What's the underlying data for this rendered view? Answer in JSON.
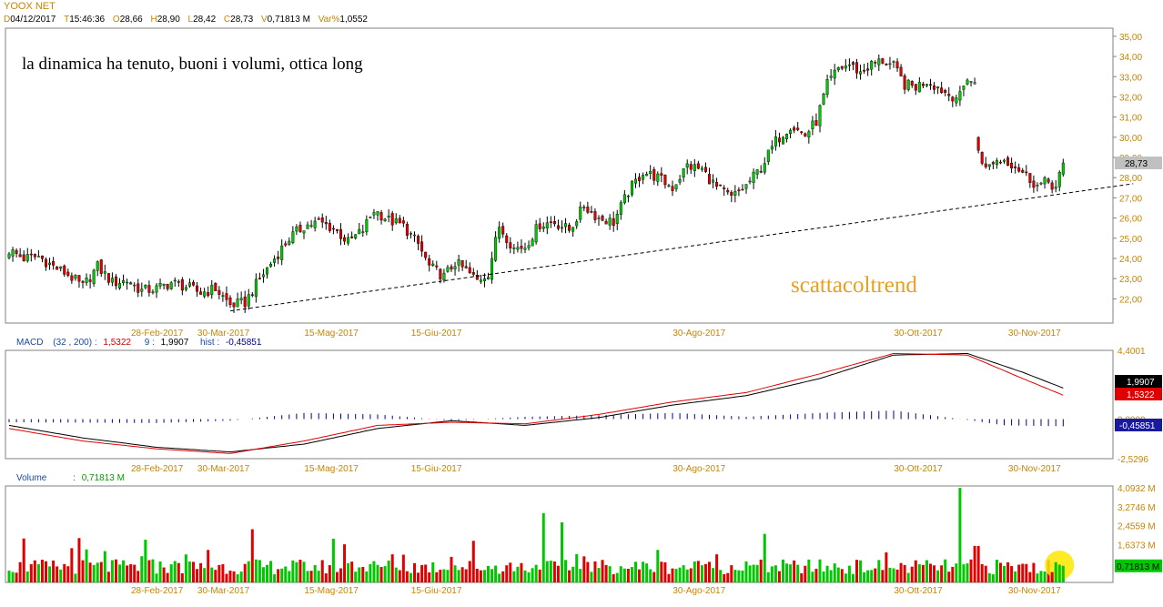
{
  "header": {
    "symbol": "YOOX NET",
    "date_label": "D",
    "date": "04/12/2017",
    "time_label": "T",
    "time": "15:46:36",
    "open_label": "O",
    "open": "28,66",
    "high_label": "H",
    "high": "28,90",
    "low_label": "L",
    "low": "28,42",
    "close_label": "C",
    "close": "28,73",
    "volume_label": "V",
    "volume": "0,71813 M",
    "varpct_label": "Var%",
    "varpct": "1,0552"
  },
  "annotations": {
    "comment": "la dinamica ha tenuto, buoni i volumi, ottica long",
    "watermark": "scattacoltrend"
  },
  "macd_header": {
    "name": "MACD",
    "params": "(32 , 200)",
    "sep": ":",
    "macd_value": "1,5322",
    "signal_period": "9",
    "signal_value": "1,9907",
    "hist_label": "hist",
    "hist_value": "-0,45851"
  },
  "volume_header": {
    "name": "Volume",
    "sep": ":",
    "value": "0,71813 M"
  },
  "colors": {
    "up": "#00c800",
    "down": "#e00000",
    "grid": "#c8c8c8",
    "axis_text": "#c88400",
    "macd_line": "#000000",
    "signal_line": "#e00000",
    "hist": "#00008b",
    "current_box": "#c0c0c0",
    "highlight": "#ffe600"
  },
  "chart_data": [
    {
      "type": "candlestick",
      "title": "YOOX NET",
      "ylim": [
        20.8,
        35.4
      ],
      "y_ticks": [
        "35,00",
        "34,00",
        "33,00",
        "32,00",
        "31,00",
        "30,00",
        "29,00",
        "28,00",
        "27,00",
        "26,00",
        "25,00",
        "24,00",
        "23,00",
        "22,00"
      ],
      "y_tick_values": [
        35,
        34,
        33,
        32,
        31,
        30,
        29,
        28,
        27,
        26,
        25,
        24,
        23,
        22
      ],
      "last_price_label": "28,73",
      "last_price": 28.73,
      "x_tick_labels": [
        "28-Feb-2017",
        "30-Mar-2017",
        "15-Mag-2017",
        "15-Giu-2017",
        "30-Ago-2017",
        "30-Ott-2017",
        "30-Nov-2017"
      ],
      "x_tick_index": [
        40,
        58,
        87,
        116,
        187,
        247,
        278
      ],
      "trendline": {
        "from": [
          60,
          21.4
        ],
        "to": [
          305,
          27.7
        ],
        "style": "dashed"
      },
      "anchors": [
        [
          0,
          24.4
        ],
        [
          4,
          24.0
        ],
        [
          8,
          24.1
        ],
        [
          12,
          23.6
        ],
        [
          16,
          23.2
        ],
        [
          20,
          22.6
        ],
        [
          24,
          23.6
        ],
        [
          28,
          22.8
        ],
        [
          32,
          22.9
        ],
        [
          36,
          22.4
        ],
        [
          40,
          22.5
        ],
        [
          44,
          22.8
        ],
        [
          48,
          22.6
        ],
        [
          52,
          22.3
        ],
        [
          56,
          22.5
        ],
        [
          60,
          21.7
        ],
        [
          64,
          21.8
        ],
        [
          68,
          23.0
        ],
        [
          72,
          24.0
        ],
        [
          76,
          25.0
        ],
        [
          80,
          25.6
        ],
        [
          84,
          25.8
        ],
        [
          88,
          25.5
        ],
        [
          92,
          24.8
        ],
        [
          96,
          25.4
        ],
        [
          99,
          26.4
        ],
        [
          103,
          25.9
        ],
        [
          107,
          25.6
        ],
        [
          111,
          24.7
        ],
        [
          114,
          23.6
        ],
        [
          118,
          23.1
        ],
        [
          121,
          23.8
        ],
        [
          124,
          23.4
        ],
        [
          127,
          22.9
        ],
        [
          130,
          23.3
        ],
        [
          133,
          25.6
        ],
        [
          137,
          24.5
        ],
        [
          140,
          24.6
        ],
        [
          144,
          25.7
        ],
        [
          148,
          25.8
        ],
        [
          152,
          25.4
        ],
        [
          156,
          26.6
        ],
        [
          160,
          26.0
        ],
        [
          164,
          25.8
        ],
        [
          168,
          27.3
        ],
        [
          172,
          28.3
        ],
        [
          176,
          28.0
        ],
        [
          180,
          27.5
        ],
        [
          184,
          28.6
        ],
        [
          188,
          28.4
        ],
        [
          192,
          27.5
        ],
        [
          196,
          27.0
        ],
        [
          200,
          27.6
        ],
        [
          204,
          28.5
        ],
        [
          208,
          29.8
        ],
        [
          212,
          30.6
        ],
        [
          216,
          30.1
        ],
        [
          219,
          30.8
        ],
        [
          222,
          32.6
        ],
        [
          225,
          33.4
        ],
        [
          228,
          33.6
        ],
        [
          231,
          33.2
        ],
        [
          234,
          33.6
        ],
        [
          237,
          33.8
        ],
        [
          240,
          33.5
        ],
        [
          243,
          32.6
        ],
        [
          246,
          32.5
        ],
        [
          249,
          32.8
        ],
        [
          252,
          32.5
        ],
        [
          255,
          32.1
        ],
        [
          258,
          32.0
        ],
        [
          260,
          33.0
        ],
        [
          262,
          32.6
        ],
        [
          263,
          29.4
        ],
        [
          265,
          28.4
        ],
        [
          267,
          28.8
        ],
        [
          270,
          28.9
        ],
        [
          273,
          28.6
        ],
        [
          276,
          28.1
        ],
        [
          279,
          27.6
        ],
        [
          282,
          27.8
        ],
        [
          284,
          27.5
        ],
        [
          286,
          28.7
        ]
      ]
    },
    {
      "type": "line",
      "title": "MACD",
      "ylim": [
        -2.5296,
        4.4001
      ],
      "y_ticks": [
        "4,4001",
        "0,0000",
        "-2,5296"
      ],
      "y_tick_values": [
        4.4001,
        0,
        -2.5296
      ],
      "last_values": {
        "signal": "1,9907",
        "macd": "1,5322",
        "hist": "-0,45851"
      },
      "x_tick_labels": [
        "28-Feb-2017",
        "30-Mar-2017",
        "15-Mag-2017",
        "15-Giu-2017",
        "30-Ago-2017",
        "30-Ott-2017",
        "30-Nov-2017"
      ],
      "macd_anchors": [
        [
          0,
          -0.6
        ],
        [
          20,
          -1.4
        ],
        [
          40,
          -1.9
        ],
        [
          60,
          -2.2
        ],
        [
          80,
          -1.4
        ],
        [
          100,
          -0.4
        ],
        [
          120,
          -0.2
        ],
        [
          140,
          -0.3
        ],
        [
          160,
          0.3
        ],
        [
          180,
          1.1
        ],
        [
          200,
          1.7
        ],
        [
          220,
          2.9
        ],
        [
          240,
          4.2
        ],
        [
          260,
          4.1
        ],
        [
          275,
          2.6
        ],
        [
          286,
          1.53
        ]
      ],
      "signal_anchors": [
        [
          0,
          -0.4
        ],
        [
          20,
          -1.2
        ],
        [
          40,
          -1.8
        ],
        [
          60,
          -2.1
        ],
        [
          80,
          -1.6
        ],
        [
          100,
          -0.6
        ],
        [
          120,
          -0.1
        ],
        [
          140,
          -0.4
        ],
        [
          160,
          0.1
        ],
        [
          180,
          0.9
        ],
        [
          200,
          1.5
        ],
        [
          220,
          2.6
        ],
        [
          240,
          4.1
        ],
        [
          260,
          4.2
        ],
        [
          275,
          3.0
        ],
        [
          286,
          1.99
        ]
      ],
      "hist_anchors": [
        [
          0,
          -0.2
        ],
        [
          40,
          -0.25
        ],
        [
          60,
          -0.1
        ],
        [
          80,
          0.4
        ],
        [
          100,
          0.3
        ],
        [
          120,
          -0.1
        ],
        [
          140,
          0.15
        ],
        [
          160,
          0.25
        ],
        [
          180,
          0.4
        ],
        [
          200,
          0.15
        ],
        [
          220,
          0.4
        ],
        [
          240,
          0.55
        ],
        [
          260,
          -0.05
        ],
        [
          270,
          -0.4
        ],
        [
          286,
          -0.45851
        ]
      ]
    },
    {
      "type": "bar",
      "title": "Volume",
      "ylim": [
        0,
        4.0932
      ],
      "unit": "M",
      "y_ticks": [
        "4,0932 M",
        "3,2746 M",
        "2,4559 M",
        "1,6373 M",
        "0,71813 M"
      ],
      "y_tick_values": [
        4.0932,
        3.2746,
        2.4559,
        1.6373,
        0.71813
      ],
      "spikes": {
        "4": 1.9,
        "66": 2.3,
        "107": 1.2,
        "126": 1.8,
        "145": 3.0,
        "150": 2.6,
        "205": 2.1,
        "258": 4.09
      },
      "last_value_label": "0,71813 M",
      "highlight_index": 285,
      "x_tick_labels": [
        "28-Feb-2017",
        "30-Mar-2017",
        "15-Mag-2017",
        "15-Giu-2017",
        "30-Ago-2017",
        "30-Ott-2017",
        "30-Nov-2017"
      ]
    }
  ]
}
